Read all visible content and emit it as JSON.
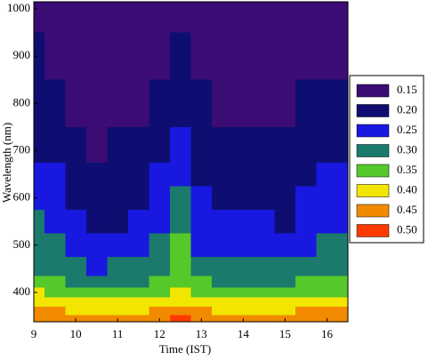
{
  "chart_data": {
    "type": "contour",
    "xlabel": "Time (IST)",
    "ylabel": "Wavelength (nm)",
    "x": [
      9,
      9.5,
      10,
      10.5,
      11,
      11.5,
      12,
      12.5,
      13,
      13.5,
      14,
      14.5,
      15,
      15.5,
      16,
      16.5
    ],
    "y": [
      1000,
      900,
      800,
      700,
      650,
      600,
      550,
      500,
      450,
      420,
      400,
      380,
      360,
      345
    ],
    "z": [
      [
        0.16,
        0.155,
        0.145,
        0.14,
        0.143,
        0.145,
        0.155,
        0.17,
        0.15,
        0.145,
        0.145,
        0.145,
        0.143,
        0.15,
        0.155,
        0.155
      ],
      [
        0.2,
        0.19,
        0.17,
        0.16,
        0.165,
        0.17,
        0.19,
        0.22,
        0.18,
        0.17,
        0.17,
        0.17,
        0.165,
        0.18,
        0.19,
        0.19
      ],
      [
        0.22,
        0.21,
        0.19,
        0.18,
        0.185,
        0.19,
        0.21,
        0.24,
        0.2,
        0.19,
        0.19,
        0.19,
        0.185,
        0.2,
        0.21,
        0.21
      ],
      [
        0.244,
        0.232,
        0.208,
        0.196,
        0.202,
        0.208,
        0.232,
        0.268,
        0.22,
        0.208,
        0.208,
        0.208,
        0.202,
        0.22,
        0.232,
        0.232
      ],
      [
        0.265,
        0.25,
        0.22,
        0.205,
        0.213,
        0.22,
        0.25,
        0.295,
        0.235,
        0.22,
        0.22,
        0.22,
        0.213,
        0.235,
        0.25,
        0.25
      ],
      [
        0.28,
        0.265,
        0.235,
        0.22,
        0.228,
        0.235,
        0.265,
        0.31,
        0.25,
        0.235,
        0.235,
        0.235,
        0.228,
        0.25,
        0.265,
        0.265
      ],
      [
        0.3,
        0.285,
        0.255,
        0.24,
        0.248,
        0.255,
        0.285,
        0.33,
        0.27,
        0.255,
        0.255,
        0.255,
        0.248,
        0.27,
        0.285,
        0.285
      ],
      [
        0.32,
        0.305,
        0.275,
        0.26,
        0.268,
        0.275,
        0.305,
        0.35,
        0.29,
        0.275,
        0.275,
        0.275,
        0.268,
        0.29,
        0.305,
        0.305
      ],
      [
        0.344,
        0.332,
        0.308,
        0.296,
        0.302,
        0.308,
        0.332,
        0.368,
        0.32,
        0.308,
        0.308,
        0.308,
        0.302,
        0.32,
        0.332,
        0.332
      ],
      [
        0.366,
        0.358,
        0.342,
        0.334,
        0.338,
        0.342,
        0.358,
        0.382,
        0.35,
        0.342,
        0.342,
        0.342,
        0.338,
        0.35,
        0.358,
        0.358
      ],
      [
        0.4,
        0.395,
        0.385,
        0.38,
        0.383,
        0.385,
        0.395,
        0.41,
        0.39,
        0.385,
        0.385,
        0.385,
        0.383,
        0.39,
        0.395,
        0.395
      ],
      [
        0.426,
        0.423,
        0.417,
        0.414,
        0.416,
        0.417,
        0.423,
        0.432,
        0.42,
        0.417,
        0.417,
        0.417,
        0.416,
        0.42,
        0.423,
        0.423
      ],
      [
        0.456,
        0.453,
        0.447,
        0.444,
        0.446,
        0.447,
        0.453,
        0.462,
        0.45,
        0.447,
        0.447,
        0.447,
        0.446,
        0.45,
        0.453,
        0.453
      ],
      [
        0.496,
        0.493,
        0.487,
        0.484,
        0.486,
        0.487,
        0.493,
        0.502,
        0.49,
        0.487,
        0.487,
        0.487,
        0.486,
        0.49,
        0.493,
        0.493
      ]
    ],
    "levels": [
      {
        "value": 0.15,
        "label": "0.15"
      },
      {
        "value": 0.2,
        "label": "0.20"
      },
      {
        "value": 0.25,
        "label": "0.25"
      },
      {
        "value": 0.3,
        "label": "0.30"
      },
      {
        "value": 0.35,
        "label": "0.35"
      },
      {
        "value": 0.4,
        "label": "0.40"
      },
      {
        "value": 0.45,
        "label": "0.45"
      },
      {
        "value": 0.5,
        "label": "0.50"
      }
    ],
    "colors": [
      "#3b0c73",
      "#0e0e72",
      "#1818e0",
      "#1b7a6c",
      "#55c82a",
      "#f2e600",
      "#f28a00",
      "#ff3a00"
    ],
    "xlim": [
      9,
      16.5
    ],
    "ylim": [
      338,
      1015
    ],
    "xticks": [
      9,
      10,
      11,
      12,
      13,
      14,
      15,
      16
    ],
    "yticks": [
      400,
      500,
      600,
      700,
      800,
      900,
      1000
    ]
  }
}
